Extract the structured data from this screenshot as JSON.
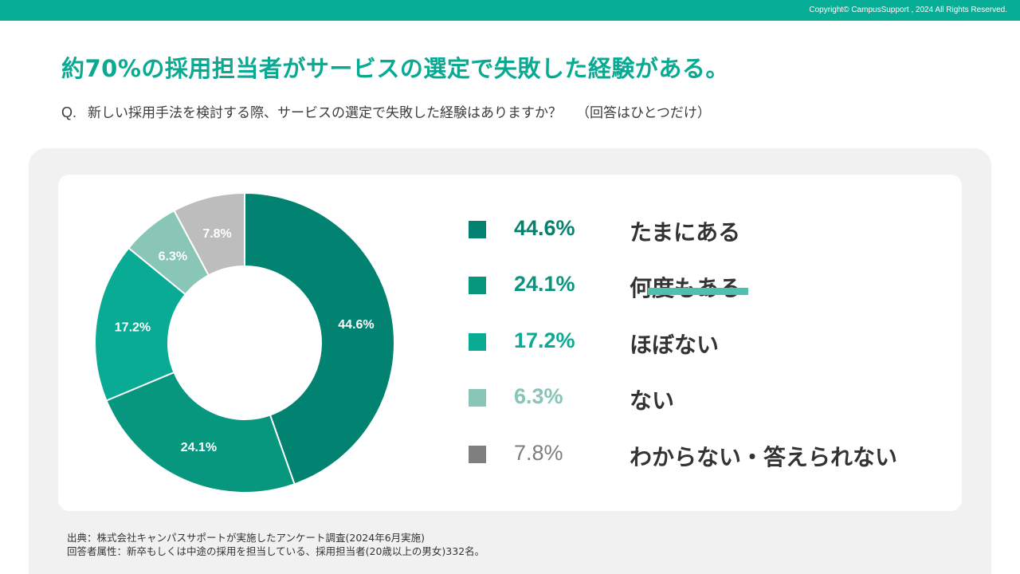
{
  "header": {
    "copyright": "Copyright© CampusSupport , 2024 All Rights Reserved.",
    "headline": "約70%の採用担当者がサービスの選定で失敗した経験がある。",
    "question_mark": "Q.",
    "question": "新しい採用手法を検討する際、サービスの選定で失敗した経験はありますか？",
    "question_note": "（回答はひとつだけ）"
  },
  "colors": {
    "brand": "#08ad96",
    "headline": "#0aa992"
  },
  "chart_data": {
    "type": "pie",
    "style": "donut",
    "categories": [
      "たまにある",
      "何度もある",
      "ほぼない",
      "ない",
      "わからない・答えられない"
    ],
    "values": [
      44.6,
      24.1,
      17.2,
      6.3,
      7.8
    ],
    "value_labels": [
      "44.6%",
      "24.1%",
      "17.2%",
      "6.3%",
      "7.8%"
    ],
    "slice_labels": [
      "44.6%",
      "24.1%",
      "17.2%",
      "6.3%",
      "7.8%"
    ],
    "colors": [
      "#028270",
      "#07977f",
      "#0aab94",
      "#89c6b8",
      "#bdbdbd"
    ],
    "legend_pct_colors": [
      "#08806e",
      "#0a937e",
      "#0aab94",
      "#86c6b7",
      "#7d7d7d"
    ],
    "legend_swatch_colors": [
      "#028270",
      "#07977f",
      "#0aab94",
      "#89c6b8",
      "#7f7f7f"
    ],
    "legend_position": "right",
    "start": "top",
    "direction": "clockwise"
  },
  "source": {
    "line1": "出典：株式会社キャンパスサポートが実施したアンケート調査(2024年6月実施)",
    "line2": "回答者属性：新卒もしくは中途の採用を担当している、採用担当者(20歳以上の男女)332名。"
  }
}
